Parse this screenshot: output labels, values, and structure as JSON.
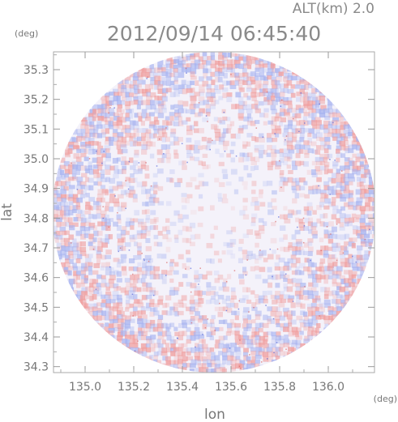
{
  "header": {
    "altitude_label": "ALT(km) 2.0",
    "datetime": "2012/09/14 06:45:40"
  },
  "chart_data": {
    "type": "heatmap",
    "title": "2012/09/14 06:45:40",
    "xlabel": "lon",
    "ylabel": "lat",
    "x_unit": "(deg)",
    "y_unit": "(deg)",
    "xlim": [
      134.87,
      136.19
    ],
    "ylim": [
      34.28,
      35.36
    ],
    "x_ticks": [
      135.0,
      135.2,
      135.4,
      135.6,
      135.8,
      136.0
    ],
    "x_tick_labels": [
      "135.0",
      "135.2",
      "135.4",
      "135.6",
      "135.8",
      "136.0"
    ],
    "y_ticks": [
      34.3,
      34.4,
      34.5,
      34.6,
      34.7,
      34.8,
      34.9,
      35.0,
      35.1,
      35.2,
      35.3
    ],
    "y_tick_labels": [
      "34.3",
      "34.4",
      "34.5",
      "34.6",
      "34.7",
      "34.8",
      "34.9",
      "35.0",
      "35.1",
      "35.2",
      "35.3"
    ],
    "coverage": {
      "center_lon": 135.53,
      "center_lat": 34.82,
      "radius_lon": 0.665,
      "radius_lat": 0.54
    },
    "color_positive": "#f0a0a0",
    "color_negative": "#a8b4f0",
    "color_neutral": "#f4f2fa",
    "grid": false,
    "legend": "none"
  }
}
